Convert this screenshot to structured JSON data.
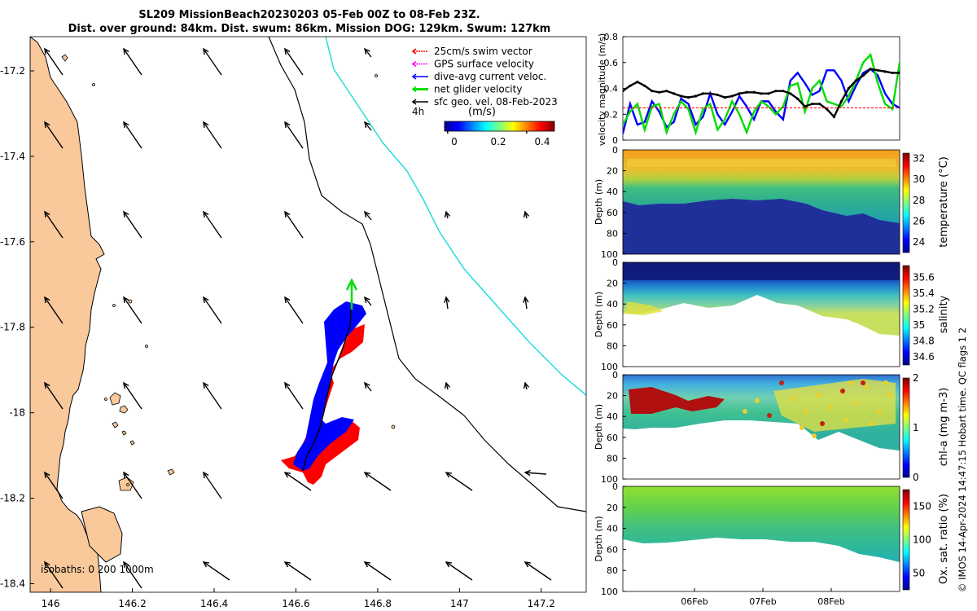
{
  "title": {
    "line1": "SL209 MissionBeach20230203 05-Feb 00Z to 08-Feb 23Z.",
    "line2": "Dist. over ground: 84km. Dist. swum: 86km. Mission DOG: 129km. Swum: 127km"
  },
  "legend": {
    "items": [
      {
        "label": "25cm/s swim vector",
        "color": "#ff0000"
      },
      {
        "label": "GPS surface velocity",
        "color": "#ff00ff"
      },
      {
        "label": "dive-avg current veloc.",
        "color": "#0000ff"
      },
      {
        "label": "net glider velocity",
        "color": "#00dd00"
      },
      {
        "label": "sfc geo. vel. 08-Feb-2023",
        "color": "#000000"
      }
    ],
    "interval": "4h",
    "colorbar_unit": "(m/s)",
    "colorbar_ticks": [
      "0",
      "0.2",
      "0.4"
    ]
  },
  "isobaths_label": "isobaths: 0  200  1000m",
  "footer": "© IMOS 14-Apr-2024 14:47:15 Hobart time. QC flags 1  2",
  "colors": {
    "land": "#f9c89b",
    "coast": "#000000",
    "blue_track": "#0000ff",
    "red_track": "#ff0000",
    "isobath_cyan": "#22dddd"
  },
  "chart_data": [
    {
      "type": "map",
      "x_ticks": [
        "146",
        "146.2",
        "146.4",
        "146.6",
        "146.8",
        "147",
        "147.2"
      ],
      "y_ticks": [
        "-17.2",
        "-17.4",
        "-17.6",
        "-17.8",
        "-18",
        "-18.2",
        "-18.4"
      ],
      "xlim": [
        145.95,
        147.31
      ],
      "ylim": [
        -18.42,
        -17.12
      ]
    },
    {
      "type": "line",
      "ylabel": "velocity magnitude (m/s)",
      "ylim": [
        0,
        0.8
      ],
      "y_ticks": [
        "0",
        "0.2",
        "0.4",
        "0.6",
        "0.8"
      ],
      "series": [
        {
          "name": "dive-avg current veloc.",
          "color": "#0000ff",
          "values": [
            0.05,
            0.28,
            0.12,
            0.14,
            0.3,
            0.22,
            0.1,
            0.14,
            0.32,
            0.28,
            0.12,
            0.18,
            0.36,
            0.2,
            0.12,
            0.22,
            0.34,
            0.26,
            0.16,
            0.3,
            0.3,
            0.22,
            0.16,
            0.46,
            0.52,
            0.44,
            0.35,
            0.38,
            0.54,
            0.54,
            0.46,
            0.3,
            0.42,
            0.52,
            0.55,
            0.5,
            0.36,
            0.28,
            0.25
          ]
        },
        {
          "name": "net glider velocity",
          "color": "#00dd00",
          "values": [
            0.12,
            0.22,
            0.28,
            0.08,
            0.26,
            0.28,
            0.06,
            0.2,
            0.3,
            0.24,
            0.06,
            0.24,
            0.28,
            0.08,
            0.16,
            0.3,
            0.2,
            0.06,
            0.22,
            0.3,
            0.26,
            0.2,
            0.26,
            0.42,
            0.44,
            0.22,
            0.4,
            0.46,
            0.3,
            0.28,
            0.26,
            0.34,
            0.46,
            0.6,
            0.66,
            0.44,
            0.28,
            0.24,
            0.6
          ]
        },
        {
          "name": "sfc geo. vel.",
          "color": "#000000",
          "values": [
            0.38,
            0.42,
            0.45,
            0.42,
            0.38,
            0.37,
            0.38,
            0.36,
            0.34,
            0.33,
            0.34,
            0.36,
            0.36,
            0.35,
            0.33,
            0.34,
            0.36,
            0.37,
            0.37,
            0.36,
            0.36,
            0.38,
            0.38,
            0.36,
            0.32,
            0.26,
            0.28,
            0.28,
            0.24,
            0.18,
            0.3,
            0.4,
            0.46,
            0.5,
            0.55,
            0.54,
            0.53,
            0.52,
            0.52
          ]
        },
        {
          "name": "25cm/s swim vector",
          "color": "#ff0000",
          "values": [
            0.25,
            0.25
          ]
        }
      ]
    },
    {
      "type": "heatmap",
      "variable": "temperature",
      "clabel": "temperature (°C)",
      "cticks": [
        "24",
        "26",
        "28",
        "30",
        "32"
      ],
      "ylabel": "Depth (m)",
      "yticks": [
        "0",
        "20",
        "40",
        "60",
        "80",
        "100"
      ]
    },
    {
      "type": "heatmap",
      "variable": "salinity",
      "clabel": "salinity",
      "cticks": [
        "34.6",
        "34.8",
        "35",
        "35.2",
        "35.4",
        "35.6"
      ],
      "ylabel": "Depth (m)",
      "yticks": [
        "0",
        "20",
        "40",
        "60",
        "80",
        "100"
      ]
    },
    {
      "type": "heatmap",
      "variable": "chl-a",
      "clabel": "chl-a (mg m-3)",
      "cticks": [
        "0",
        "1",
        "2"
      ],
      "ylabel": "Depth (m)",
      "yticks": [
        "0",
        "20",
        "40",
        "60",
        "80",
        "100"
      ]
    },
    {
      "type": "heatmap",
      "variable": "oxygen",
      "clabel": "Ox. sat. ratio (%)",
      "cticks": [
        "50",
        "100",
        "150"
      ],
      "ylabel": "Depth (m)",
      "yticks": [
        "0",
        "20",
        "40",
        "60",
        "80",
        "100"
      ],
      "xticks": [
        "06Feb",
        "07Feb",
        "08Feb"
      ]
    }
  ]
}
